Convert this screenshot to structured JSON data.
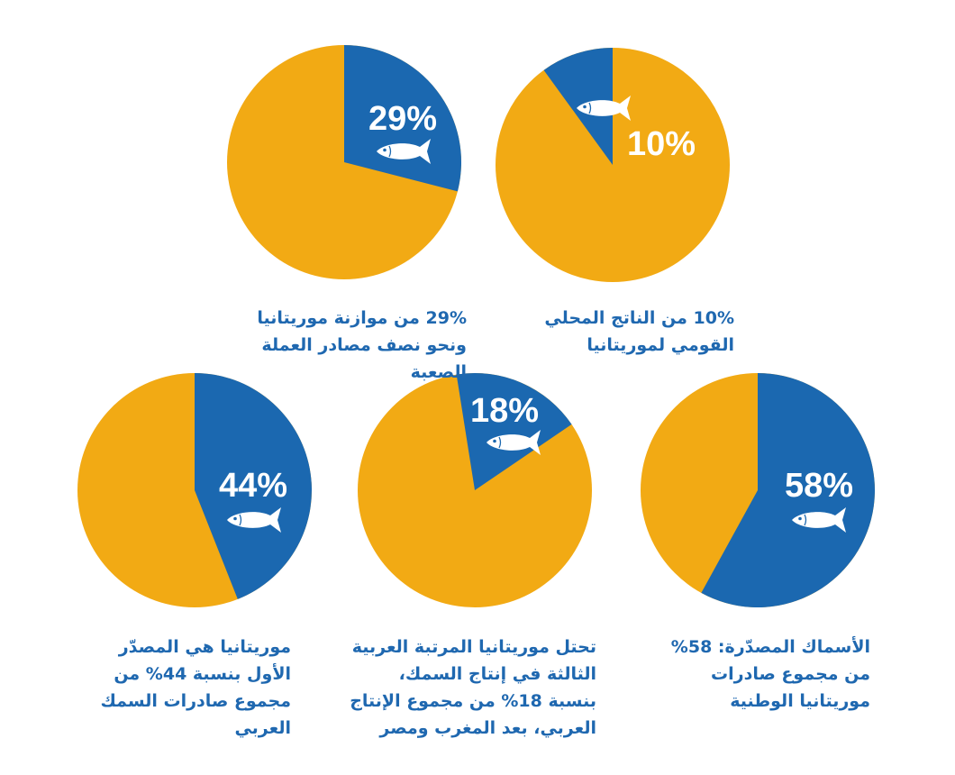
{
  "colors": {
    "highlight": "#1b68b0",
    "rest": "#f2aa14",
    "caption": "#1f68b0",
    "label": "#ffffff"
  },
  "icon": "fish-icon",
  "chart_data": [
    {
      "type": "pie",
      "value_percent": 29,
      "label": "29%",
      "caption": "29% من موازنة موريتانيا ونحو نصف مصادر العملة الصعبة"
    },
    {
      "type": "pie",
      "value_percent": 10,
      "label": "10%",
      "caption": "10% من الناتج المحلي القومي لموريتانيا"
    },
    {
      "type": "pie",
      "value_percent": 44,
      "label": "44%",
      "caption": "موريتانيا هي المصدّر الأول بنسبة 44% من مجموع صادرات السمك العربي"
    },
    {
      "type": "pie",
      "value_percent": 18,
      "label": "18%",
      "caption": "تحتل موريتانيا المرتبة العربية الثالثة في إنتاج السمك، بنسبة 18% من مجموع الإنتاج العربي، بعد المغرب ومصر"
    },
    {
      "type": "pie",
      "value_percent": 58,
      "label": "58%",
      "caption": "الأسماك المصدّرة: 58% من مجموع صادرات موريتانيا الوطنية"
    }
  ]
}
